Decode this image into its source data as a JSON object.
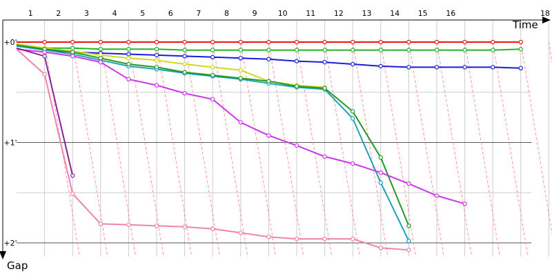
{
  "chart_data": {
    "type": "line",
    "x_label": "Time",
    "y_label": "Gap",
    "x_ticks": [
      "1",
      "2",
      "3",
      "4",
      "5",
      "6",
      "7",
      "8",
      "9",
      "10",
      "11",
      "12",
      "13",
      "14",
      "15",
      "16",
      "18"
    ],
    "y_ticks": [
      "+0'",
      "+1'",
      "+2'"
    ],
    "x_range": [
      0,
      18
    ],
    "y_range_minutes": [
      0,
      2
    ],
    "grid": true,
    "background_color": "#ffffff",
    "reference_line_color": "#ff8080",
    "series": [
      {
        "color": "#ee1111",
        "points": [
          [
            0,
            0.0
          ],
          [
            1,
            0.0
          ],
          [
            2,
            0.0
          ],
          [
            3,
            0.0
          ],
          [
            4,
            0.0
          ],
          [
            5,
            0.0
          ],
          [
            6,
            0.0
          ],
          [
            7,
            0.0
          ],
          [
            8,
            0.0
          ],
          [
            9,
            0.0
          ],
          [
            10,
            0.0
          ],
          [
            11,
            0.0
          ],
          [
            12,
            0.0
          ],
          [
            13,
            0.0
          ],
          [
            14,
            0.0
          ],
          [
            15,
            0.0
          ],
          [
            16,
            0.0
          ],
          [
            17,
            0.0
          ],
          [
            18,
            0.0
          ]
        ]
      },
      {
        "color": "#22b522",
        "points": [
          [
            0,
            0.02
          ],
          [
            1,
            0.06
          ],
          [
            2,
            0.06
          ],
          [
            3,
            0.07
          ],
          [
            4,
            0.07
          ],
          [
            5,
            0.07
          ],
          [
            6,
            0.08
          ],
          [
            7,
            0.08
          ],
          [
            8,
            0.08
          ],
          [
            9,
            0.08
          ],
          [
            10,
            0.08
          ],
          [
            11,
            0.08
          ],
          [
            12,
            0.08
          ],
          [
            13,
            0.08
          ],
          [
            14,
            0.08
          ],
          [
            15,
            0.08
          ],
          [
            16,
            0.08
          ],
          [
            17,
            0.08
          ],
          [
            18,
            0.07
          ]
        ]
      },
      {
        "color": "#1a1add",
        "points": [
          [
            0,
            0.03
          ],
          [
            1,
            0.08
          ],
          [
            2,
            0.1
          ],
          [
            3,
            0.11
          ],
          [
            4,
            0.12
          ],
          [
            5,
            0.13
          ],
          [
            6,
            0.14
          ],
          [
            7,
            0.15
          ],
          [
            8,
            0.16
          ],
          [
            9,
            0.17
          ],
          [
            10,
            0.19
          ],
          [
            11,
            0.2
          ],
          [
            12,
            0.22
          ],
          [
            13,
            0.24
          ],
          [
            14,
            0.25
          ],
          [
            15,
            0.25
          ],
          [
            16,
            0.25
          ],
          [
            17,
            0.25
          ],
          [
            18,
            0.26
          ]
        ]
      },
      {
        "color": "#d6d61a",
        "points": [
          [
            0,
            0.02
          ],
          [
            1,
            0.06
          ],
          [
            2,
            0.09
          ],
          [
            3,
            0.13
          ],
          [
            4,
            0.16
          ],
          [
            5,
            0.18
          ],
          [
            6,
            0.22
          ],
          [
            7,
            0.25
          ],
          [
            8,
            0.28
          ],
          [
            9,
            0.39
          ],
          [
            10,
            0.43
          ],
          [
            11,
            0.45
          ]
        ]
      },
      {
        "color": "#1fa0b8",
        "points": [
          [
            0,
            0.04
          ],
          [
            1,
            0.08
          ],
          [
            2,
            0.12
          ],
          [
            3,
            0.18
          ],
          [
            4,
            0.24
          ],
          [
            5,
            0.27
          ],
          [
            6,
            0.31
          ],
          [
            7,
            0.34
          ],
          [
            8,
            0.37
          ],
          [
            9,
            0.41
          ],
          [
            10,
            0.45
          ],
          [
            11,
            0.47
          ],
          [
            12,
            0.76
          ],
          [
            13,
            1.4
          ],
          [
            14,
            1.98
          ]
        ]
      },
      {
        "color": "#229922",
        "points": [
          [
            0,
            0.03
          ],
          [
            1,
            0.07
          ],
          [
            2,
            0.1
          ],
          [
            3,
            0.16
          ],
          [
            4,
            0.22
          ],
          [
            5,
            0.25
          ],
          [
            6,
            0.3
          ],
          [
            7,
            0.33
          ],
          [
            8,
            0.36
          ],
          [
            9,
            0.39
          ],
          [
            10,
            0.44
          ],
          [
            11,
            0.46
          ],
          [
            12,
            0.69
          ],
          [
            13,
            1.15
          ],
          [
            14,
            1.83
          ]
        ]
      },
      {
        "color": "#cc33ee",
        "points": [
          [
            0,
            0.07
          ],
          [
            1,
            0.1
          ],
          [
            2,
            0.14
          ],
          [
            3,
            0.2
          ],
          [
            4,
            0.37
          ],
          [
            5,
            0.43
          ],
          [
            6,
            0.51
          ],
          [
            7,
            0.57
          ],
          [
            8,
            0.8
          ],
          [
            9,
            0.93
          ],
          [
            10,
            1.03
          ],
          [
            11,
            1.14
          ],
          [
            12,
            1.21
          ],
          [
            13,
            1.3
          ],
          [
            14,
            1.41
          ],
          [
            15,
            1.53
          ],
          [
            16,
            1.61
          ]
        ]
      },
      {
        "color": "#882299",
        "points": [
          [
            0,
            0.06
          ],
          [
            1,
            0.14
          ],
          [
            2,
            1.33
          ]
        ]
      },
      {
        "color": "#f082b0",
        "points": [
          [
            0,
            0.07
          ],
          [
            1,
            0.32
          ],
          [
            2,
            1.51
          ],
          [
            3,
            1.81
          ],
          [
            4,
            1.82
          ],
          [
            5,
            1.83
          ],
          [
            6,
            1.84
          ],
          [
            7,
            1.86
          ],
          [
            8,
            1.9
          ],
          [
            9,
            1.94
          ],
          [
            10,
            1.96
          ],
          [
            11,
            1.96
          ],
          [
            12,
            1.96
          ],
          [
            13,
            2.05
          ],
          [
            14,
            2.07
          ]
        ]
      }
    ]
  }
}
